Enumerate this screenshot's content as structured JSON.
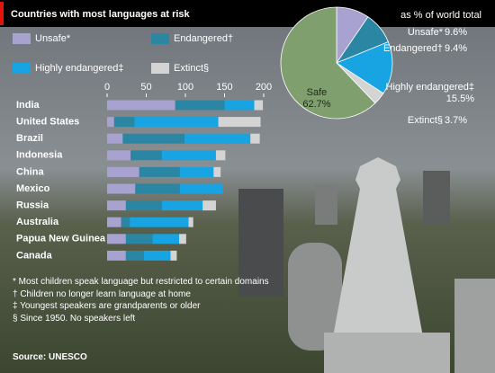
{
  "chart_data": [
    {
      "type": "stacked-bar-horizontal",
      "title": "Countries with most languages at risk",
      "categories": [
        "India",
        "United States",
        "Brazil",
        "Indonesia",
        "China",
        "Mexico",
        "Russia",
        "Australia",
        "Papua New Guinea",
        "Canada"
      ],
      "series": [
        {
          "name": "Unsafe*",
          "color": "#a7a2cf",
          "values": [
            87,
            9,
            20,
            30,
            41,
            36,
            24,
            18,
            24,
            24
          ]
        },
        {
          "name": "Endangered†",
          "color": "#2a86a3",
          "values": [
            63,
            26,
            79,
            40,
            52,
            57,
            46,
            11,
            34,
            23
          ]
        },
        {
          "name": "Highly endangered‡",
          "color": "#18a4e2",
          "values": [
            38,
            107,
            84,
            69,
            43,
            55,
            52,
            75,
            34,
            34
          ]
        },
        {
          "name": "Extinct§",
          "color": "#d4d4d4",
          "values": [
            11,
            54,
            12,
            12,
            9,
            0,
            17,
            6,
            9,
            8
          ]
        }
      ],
      "xlim": [
        0,
        200
      ],
      "xticks": [
        0,
        50,
        100,
        150,
        200
      ],
      "notes": [
        "* Most children speak language but restricted to certain domains",
        "† Children no longer learn language at home",
        "‡ Youngest speakers are grandparents or older",
        "§ Since 1950. No speakers left"
      ],
      "source": "Source: UNESCO"
    },
    {
      "type": "pie",
      "title": "as % of world total",
      "categories": [
        "Unsafe*",
        "Endangered†",
        "Highly endangered‡",
        "Extinct§",
        "Safe"
      ],
      "values": [
        9.6,
        9.4,
        15.5,
        3.7,
        62.7
      ],
      "value_labels": [
        "9.6%",
        "9.4%",
        "15.5%",
        "3.7%",
        "62.7%"
      ],
      "colors": [
        "#a7a2cf",
        "#2a86a3",
        "#18a4e2",
        "#d4d4d4",
        "#7f9f6f"
      ]
    }
  ]
}
